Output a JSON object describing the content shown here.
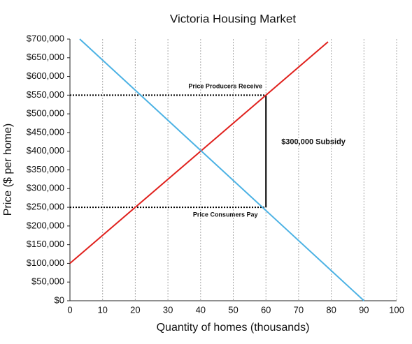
{
  "chart_data": {
    "type": "line",
    "title": "Victoria Housing Market",
    "x_label": "Quantity of homes (thousands)",
    "y_label": "Price ($ per home)",
    "xlim": [
      0,
      100
    ],
    "ylim": [
      0,
      700000
    ],
    "xticks": [
      0,
      10,
      20,
      30,
      40,
      50,
      60,
      70,
      80,
      90,
      100
    ],
    "yticks": [
      {
        "value": 0,
        "label": "$0"
      },
      {
        "value": 50000,
        "label": "$50,000"
      },
      {
        "value": 100000,
        "label": "$100,000"
      },
      {
        "value": 150000,
        "label": "$150,000"
      },
      {
        "value": 200000,
        "label": "$200,000"
      },
      {
        "value": 250000,
        "label": "$250,000"
      },
      {
        "value": 300000,
        "label": "$300,000"
      },
      {
        "value": 350000,
        "label": "$350,000"
      },
      {
        "value": 400000,
        "label": "$400,000"
      },
      {
        "value": 450000,
        "label": "$450,000"
      },
      {
        "value": 500000,
        "label": "$500,000"
      },
      {
        "value": 550000,
        "label": "$550,000"
      },
      {
        "value": 600000,
        "label": "$600,000"
      },
      {
        "value": 650000,
        "label": "$650,000"
      },
      {
        "value": 700000,
        "label": "$700,000"
      }
    ],
    "grid": true,
    "series": [
      {
        "color": "#e0201c",
        "x": [
          0,
          79
        ],
        "values": [
          100000,
          692500
        ]
      },
      {
        "color": "#4cb2e4",
        "x": [
          3,
          90
        ],
        "values": [
          700000,
          0
        ]
      }
    ],
    "reference_lines": [
      {
        "y": 550000,
        "x_end": 60,
        "label": "Price Producers Receive",
        "label_side": "above"
      },
      {
        "y": 250000,
        "x_end": 60,
        "label": "Price Consumers Pay",
        "label_side": "below"
      }
    ],
    "subsidy": {
      "x": 60,
      "from": 250000,
      "to": 550000,
      "label": "$300,000 Subsidy"
    }
  }
}
